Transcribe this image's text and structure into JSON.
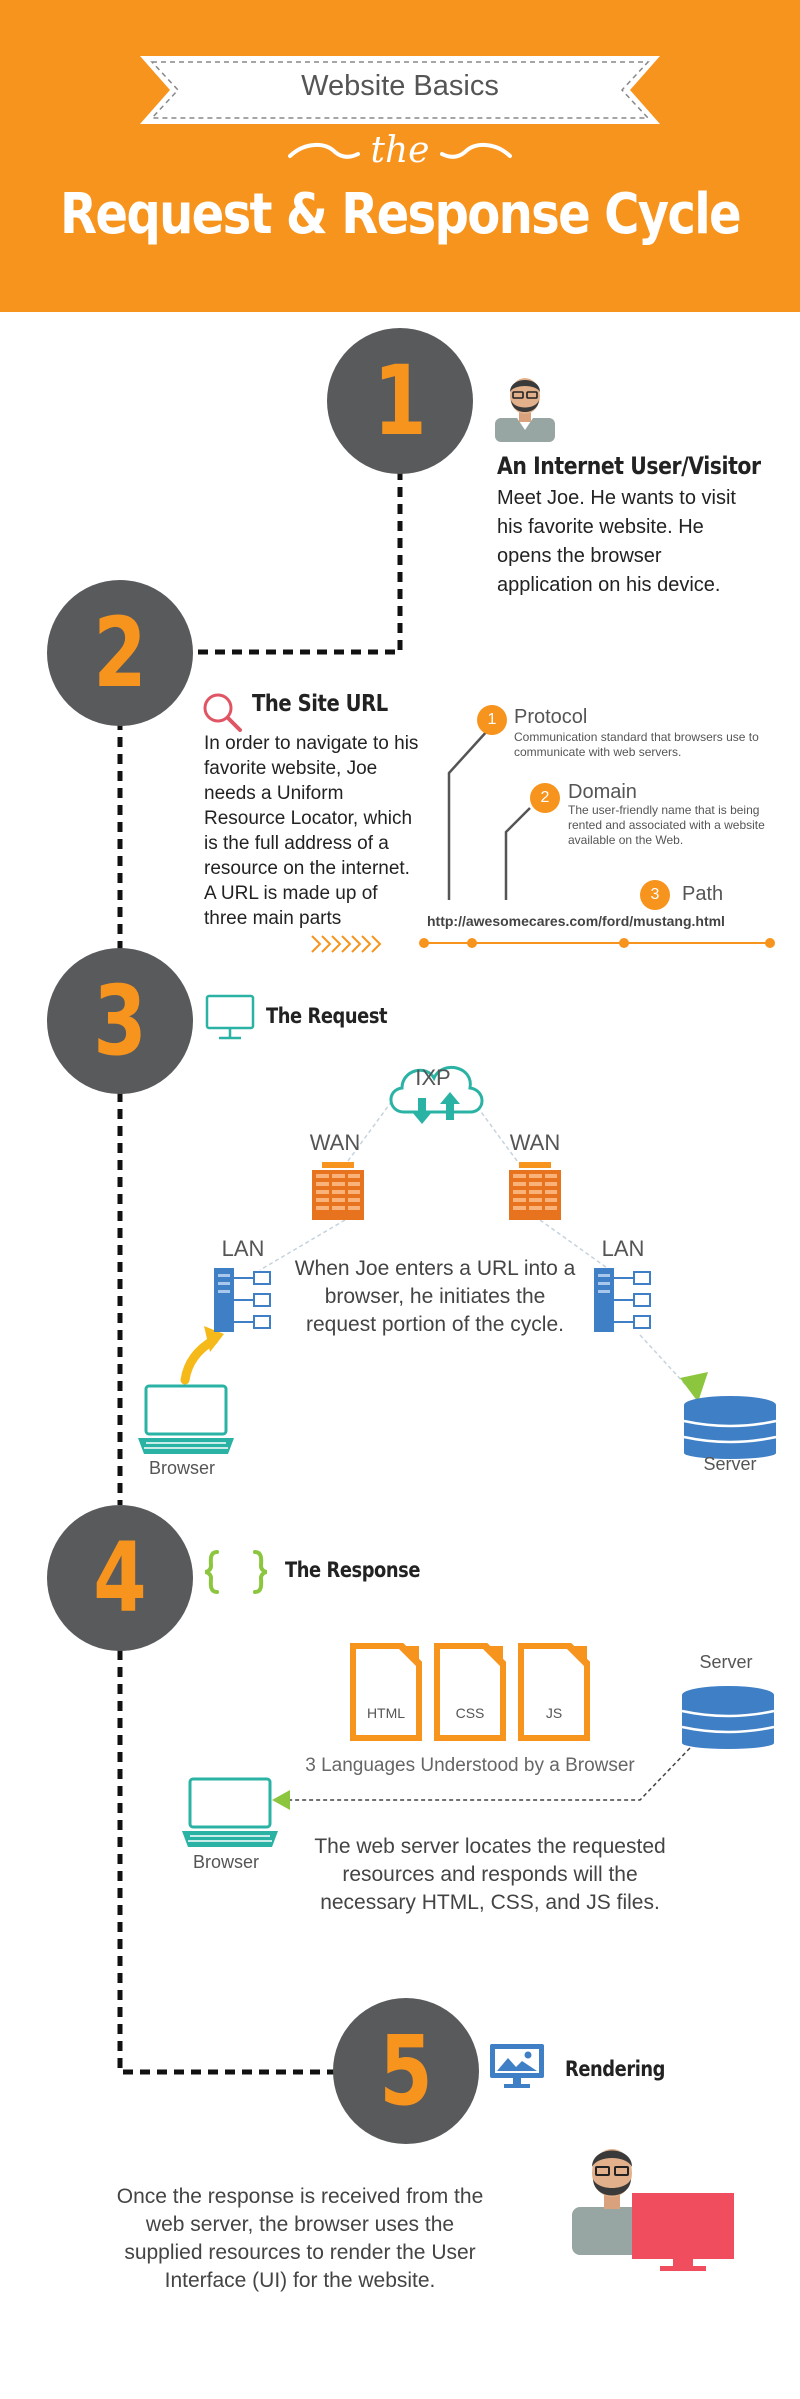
{
  "header": {
    "ribbon_text": "Website Basics",
    "connector_word": "the",
    "title": "Request & Response Cycle",
    "background_color": "#f7941d"
  },
  "colors": {
    "accent": "#f7941d",
    "circle": "#595a5c",
    "lan_blue": "#3f7fc6",
    "teal": "#2ab3a5",
    "green": "#8cc63f",
    "red": "#f04e5e"
  },
  "steps": [
    {
      "number": "1",
      "icon": "user-avatar-icon",
      "title": "An Internet User/Visitor",
      "body": "Meet Joe. He wants to visit his favorite website. He opens the browser application on his device."
    },
    {
      "number": "2",
      "icon": "magnifier-icon",
      "title": "The Site URL",
      "body": "In order to navigate to his favorite website, Joe needs a Uniform Resource Locator, which is the full address of a resource on the internet. A URL is made up of three main parts",
      "url": "http://awesomecares.com/ford/mustang.html",
      "url_parts": [
        {
          "number": "1",
          "name": "Protocol",
          "description": "Communication standard that browsers use to communicate with web servers."
        },
        {
          "number": "2",
          "name": "Domain",
          "description": "The user-friendly name that is being rented and associated with a website available on the Web."
        },
        {
          "number": "3",
          "name": "Path",
          "description": ""
        }
      ]
    },
    {
      "number": "3",
      "icon": "monitor-icon",
      "title": "The Request",
      "network": {
        "ixp": "IXP",
        "wan_left": "WAN",
        "wan_right": "WAN",
        "lan_left": "LAN",
        "lan_right": "LAN",
        "browser": "Browser",
        "server": "Server"
      },
      "body": "When Joe enters a URL into a browser, he initiates the request portion of the cycle."
    },
    {
      "number": "4",
      "icon": "curly-braces-icon",
      "title": "The Response",
      "server": "Server",
      "files": [
        "HTML",
        "CSS",
        "JS"
      ],
      "caption": "3 Languages Understood by a Browser",
      "browser": "Browser",
      "body": "The web server locates the requested resources and responds will the necessary HTML, CSS, and JS files."
    },
    {
      "number": "5",
      "icon": "image-monitor-icon",
      "title": "Rendering",
      "body": "Once the response is received from the web server, the browser uses the supplied resources to render the User Interface (UI) for the website."
    }
  ]
}
